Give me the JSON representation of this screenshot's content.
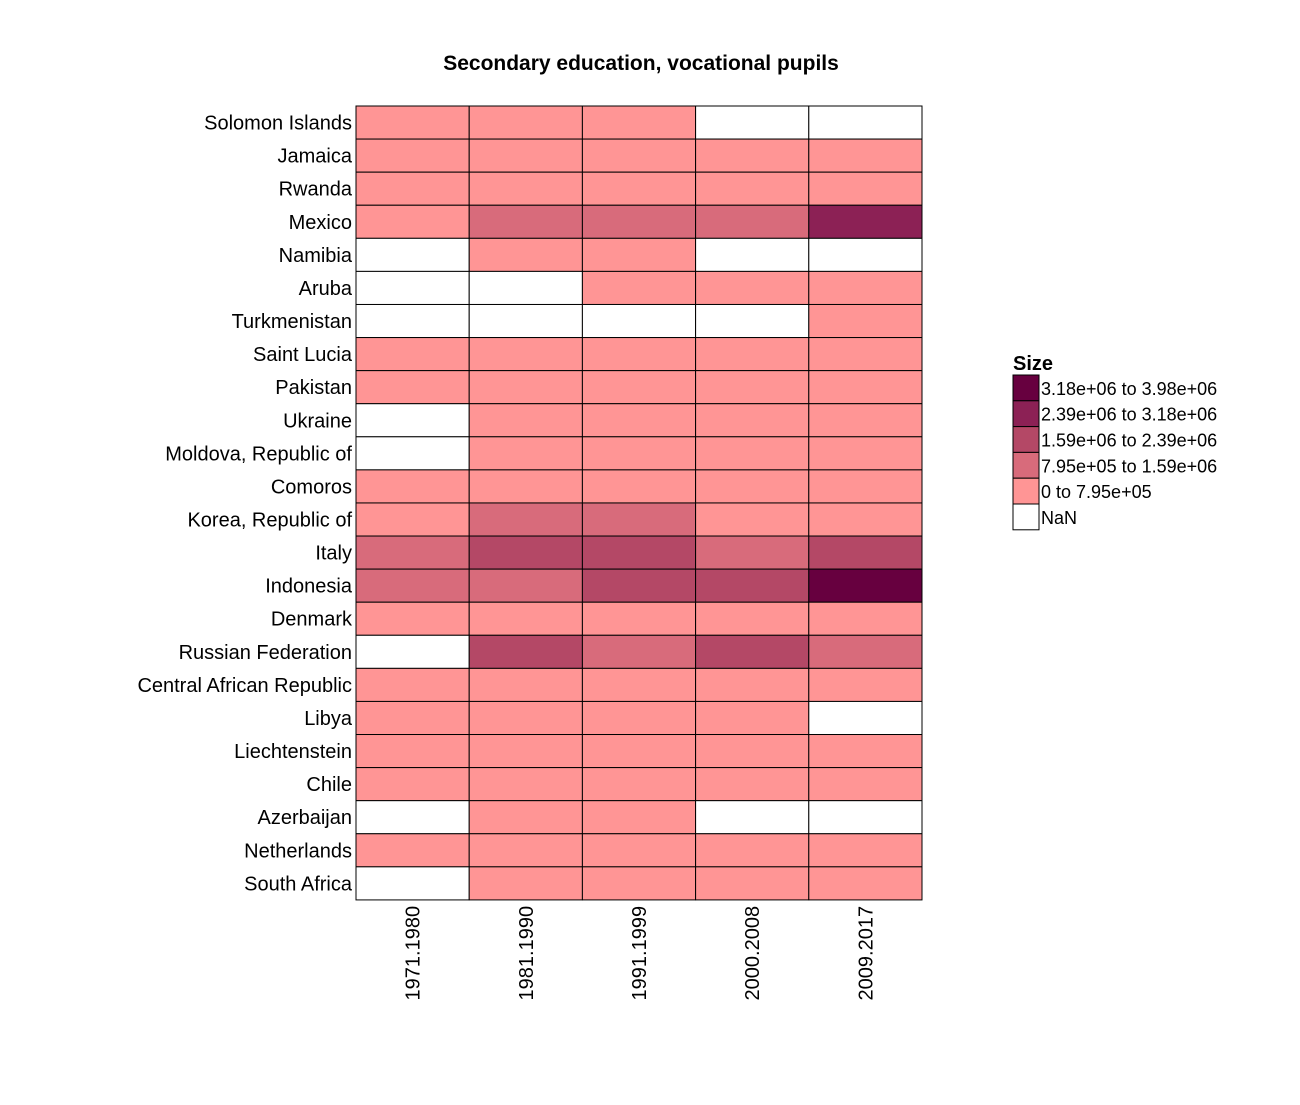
{
  "chart_data": {
    "type": "heatmap",
    "title": "Secondary education, vocational pupils",
    "xlabel": "",
    "ylabel": "",
    "columns": [
      "1971.1980",
      "1981.1990",
      "1991.1999",
      "2000.2008",
      "2009.2017"
    ],
    "rows": [
      "Solomon Islands",
      "Jamaica",
      "Rwanda",
      "Mexico",
      "Namibia",
      "Aruba",
      "Turkmenistan",
      "Saint Lucia",
      "Pakistan",
      "Ukraine",
      "Moldova, Republic of",
      "Comoros",
      "Korea, Republic of",
      "Italy",
      "Indonesia",
      "Denmark",
      "Russian Federation",
      "Central African Republic",
      "Libya",
      "Liechtenstein",
      "Chile",
      "Azerbaijan",
      "Netherlands",
      "South Africa"
    ],
    "bins": [
      {
        "label": "3.18e+06 to 3.98e+06",
        "color": "#67003f"
      },
      {
        "label": "2.39e+06 to 3.18e+06",
        "color": "#8c2155"
      },
      {
        "label": "1.59e+06 to 2.39e+06",
        "color": "#b44866"
      },
      {
        "label": "7.95e+05 to 1.59e+06",
        "color": "#d86b7b"
      },
      {
        "label": "0 to 7.95e+05",
        "color": "#ff9595"
      },
      {
        "label": "NaN",
        "color": "#ffffff"
      }
    ],
    "cells": [
      [
        4,
        4,
        4,
        5,
        5
      ],
      [
        4,
        4,
        4,
        4,
        4
      ],
      [
        4,
        4,
        4,
        4,
        4
      ],
      [
        4,
        3,
        3,
        3,
        1
      ],
      [
        5,
        4,
        4,
        5,
        5
      ],
      [
        5,
        5,
        4,
        4,
        4
      ],
      [
        5,
        5,
        5,
        5,
        4
      ],
      [
        4,
        4,
        4,
        4,
        4
      ],
      [
        4,
        4,
        4,
        4,
        4
      ],
      [
        5,
        4,
        4,
        4,
        4
      ],
      [
        5,
        4,
        4,
        4,
        4
      ],
      [
        4,
        4,
        4,
        4,
        4
      ],
      [
        4,
        3,
        3,
        4,
        4
      ],
      [
        3,
        2,
        2,
        3,
        2
      ],
      [
        3,
        3,
        2,
        2,
        0
      ],
      [
        4,
        4,
        4,
        4,
        4
      ],
      [
        5,
        2,
        3,
        2,
        3
      ],
      [
        4,
        4,
        4,
        4,
        4
      ],
      [
        4,
        4,
        4,
        4,
        5
      ],
      [
        4,
        4,
        4,
        4,
        4
      ],
      [
        4,
        4,
        4,
        4,
        4
      ],
      [
        5,
        4,
        4,
        5,
        5
      ],
      [
        4,
        4,
        4,
        4,
        4
      ],
      [
        5,
        4,
        4,
        4,
        4
      ]
    ],
    "legend": {
      "title": "Size",
      "position": "right"
    },
    "grid": false
  }
}
